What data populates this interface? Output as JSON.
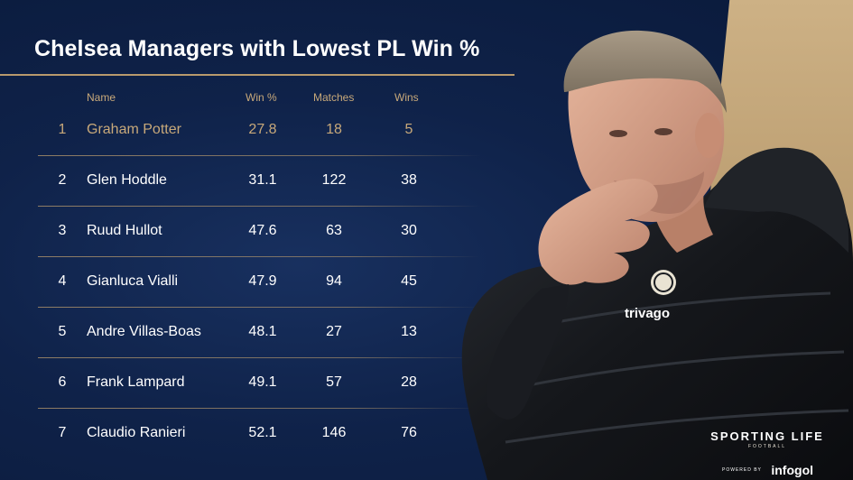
{
  "title": "Chelsea Managers with Lowest PL Win %",
  "colors": {
    "background": "#0d1f45",
    "accent_gold": "#c8a97a",
    "text": "#ffffff"
  },
  "chart_data": {
    "type": "table",
    "title": "Chelsea Managers with Lowest PL Win %",
    "columns": [
      "Name",
      "Win %",
      "Matches",
      "Wins"
    ],
    "rows": [
      {
        "rank": "1",
        "name": "Graham Potter",
        "win_pct": "27.8",
        "matches": "18",
        "wins": "5"
      },
      {
        "rank": "2",
        "name": "Glen Hoddle",
        "win_pct": "31.1",
        "matches": "122",
        "wins": "38"
      },
      {
        "rank": "3",
        "name": "Ruud Hullot",
        "win_pct": "47.6",
        "matches": "63",
        "wins": "30"
      },
      {
        "rank": "4",
        "name": "Gianluca Vialli",
        "win_pct": "47.9",
        "matches": "94",
        "wins": "45"
      },
      {
        "rank": "5",
        "name": "Andre Villas-Boas",
        "win_pct": "48.1",
        "matches": "27",
        "wins": "13"
      },
      {
        "rank": "6",
        "name": "Frank Lampard",
        "win_pct": "49.1",
        "matches": "57",
        "wins": "28"
      },
      {
        "rank": "7",
        "name": "Claudio Ranieri",
        "win_pct": "52.1",
        "matches": "146",
        "wins": "76"
      }
    ],
    "highlighted_row": 0
  },
  "photo": {
    "jacket_text": "trivago",
    "icons": [
      "chelsea-crest-icon"
    ]
  },
  "brand": {
    "name": "SPORTING LIFE",
    "sub": "FOOTBALL",
    "powered_by": "POWERED BY",
    "partner": "infogol"
  }
}
